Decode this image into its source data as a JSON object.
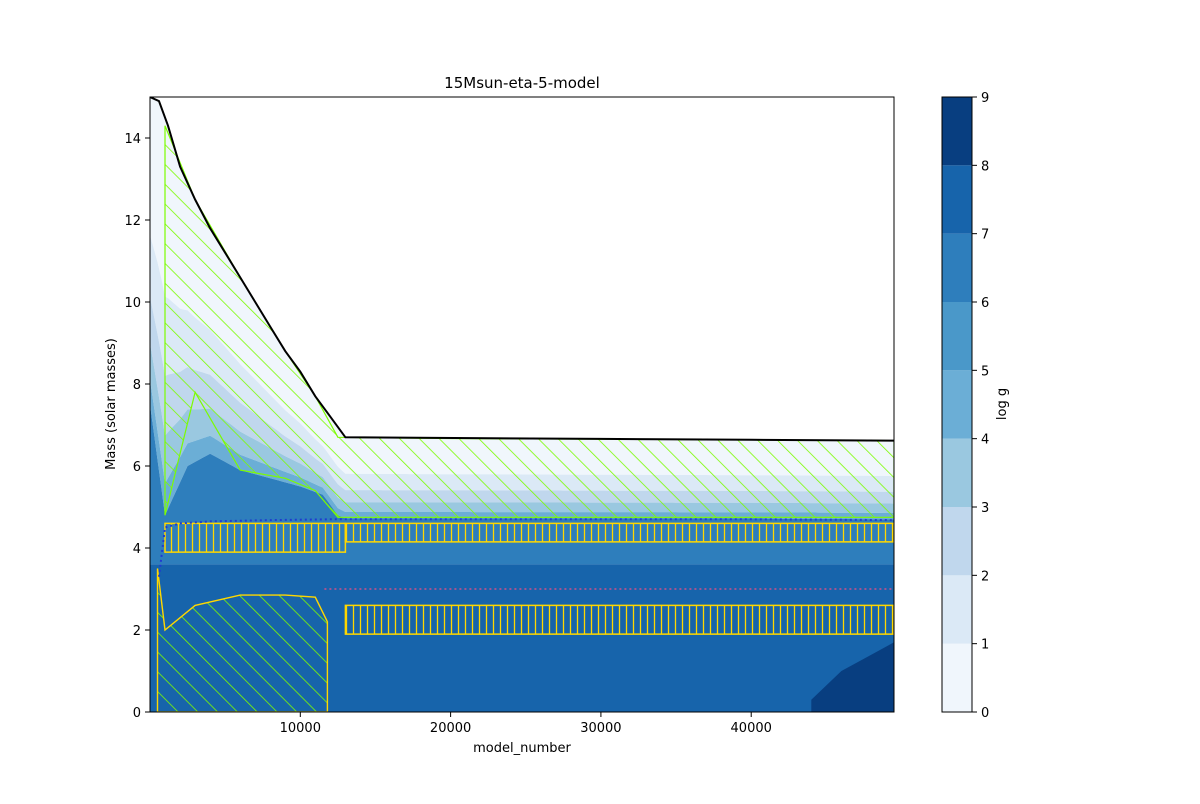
{
  "chart_data": {
    "type": "heatmap",
    "title": "15Msun-eta-5-model",
    "xlabel": "model_number",
    "ylabel": "Mass (solar masses)",
    "xlim": [
      0,
      49500
    ],
    "ylim": [
      0,
      15
    ],
    "xticks": [
      10000,
      20000,
      30000,
      40000
    ],
    "yticks": [
      0,
      2,
      4,
      6,
      8,
      10,
      12,
      14
    ],
    "grid": false,
    "colorbar": {
      "label": "log g",
      "ticks": [
        0,
        1,
        2,
        3,
        4,
        5,
        6,
        7,
        8,
        9
      ],
      "levels": [
        "#f0f6fc",
        "#dbe9f6",
        "#c0d7ed",
        "#9ac8e0",
        "#6baed6",
        "#4a98c9",
        "#2e7ebc",
        "#1764ab",
        "#083e80"
      ]
    },
    "star_mass": {
      "x": [
        0,
        600,
        1200,
        2000,
        3000,
        4000,
        5000,
        6000,
        7000,
        8000,
        9000,
        10000,
        11000,
        12000,
        13000,
        30000,
        40000,
        45000,
        49500
      ],
      "y": [
        15.0,
        14.9,
        14.3,
        13.3,
        12.5,
        11.8,
        11.2,
        10.6,
        10.0,
        9.4,
        8.8,
        8.3,
        7.7,
        7.2,
        6.7,
        6.66,
        6.64,
        6.63,
        6.62
      ]
    },
    "envelope_logg_boundary": {
      "x": [
        0,
        1000,
        2500,
        4000,
        6000,
        8000,
        10000,
        11500,
        12500,
        13000,
        20000,
        30000,
        40000,
        49500
      ],
      "y": [
        7.5,
        4.8,
        6.0,
        6.3,
        5.9,
        5.7,
        5.5,
        5.3,
        4.8,
        4.72,
        4.72,
        4.72,
        4.72,
        4.7
      ]
    },
    "he_core_boundary": {
      "x": [
        600,
        1000,
        2000,
        4000,
        8000,
        12000,
        13000,
        20000,
        30000,
        40000,
        49500
      ],
      "y": [
        3.3,
        4.5,
        4.6,
        4.65,
        4.68,
        4.7,
        4.7,
        4.7,
        4.7,
        4.7,
        4.68
      ]
    },
    "co_core_boundary": {
      "x": [
        11600,
        20000,
        30000,
        40000,
        49500
      ],
      "y": [
        3.0,
        3.0,
        3.0,
        3.0,
        3.0
      ]
    },
    "convective_core": {
      "x": [
        500,
        1000,
        3000,
        6000,
        9000,
        11000,
        11800,
        11800
      ],
      "y_top": [
        3.5,
        2.0,
        2.6,
        2.85,
        2.85,
        2.8,
        2.2,
        0.0
      ]
    },
    "envelope_convection": {
      "x": [
        1000,
        3000,
        6000,
        9000,
        11000,
        12500,
        20000,
        40000,
        49500
      ],
      "y_bottom": [
        4.8,
        7.8,
        5.9,
        5.7,
        5.4,
        4.75,
        4.75,
        4.75,
        4.75
      ],
      "y_top": [
        14.3,
        12.5,
        10.6,
        8.8,
        7.7,
        6.7,
        6.67,
        6.64,
        6.62
      ]
    },
    "shell_burning_regions": [
      {
        "name": "",
        "x": [
          1000,
          13000,
          13000,
          1000
        ],
        "y": [
          4.6,
          4.6,
          3.9,
          3.9
        ]
      },
      {
        "name": "",
        "x": [
          13000,
          49500,
          49500,
          13000
        ],
        "y": [
          4.6,
          4.6,
          4.15,
          4.15
        ]
      },
      {
        "name": "",
        "x": [
          13000,
          49500,
          49500,
          13000
        ],
        "y": [
          2.6,
          2.6,
          1.9,
          1.9
        ]
      }
    ]
  }
}
